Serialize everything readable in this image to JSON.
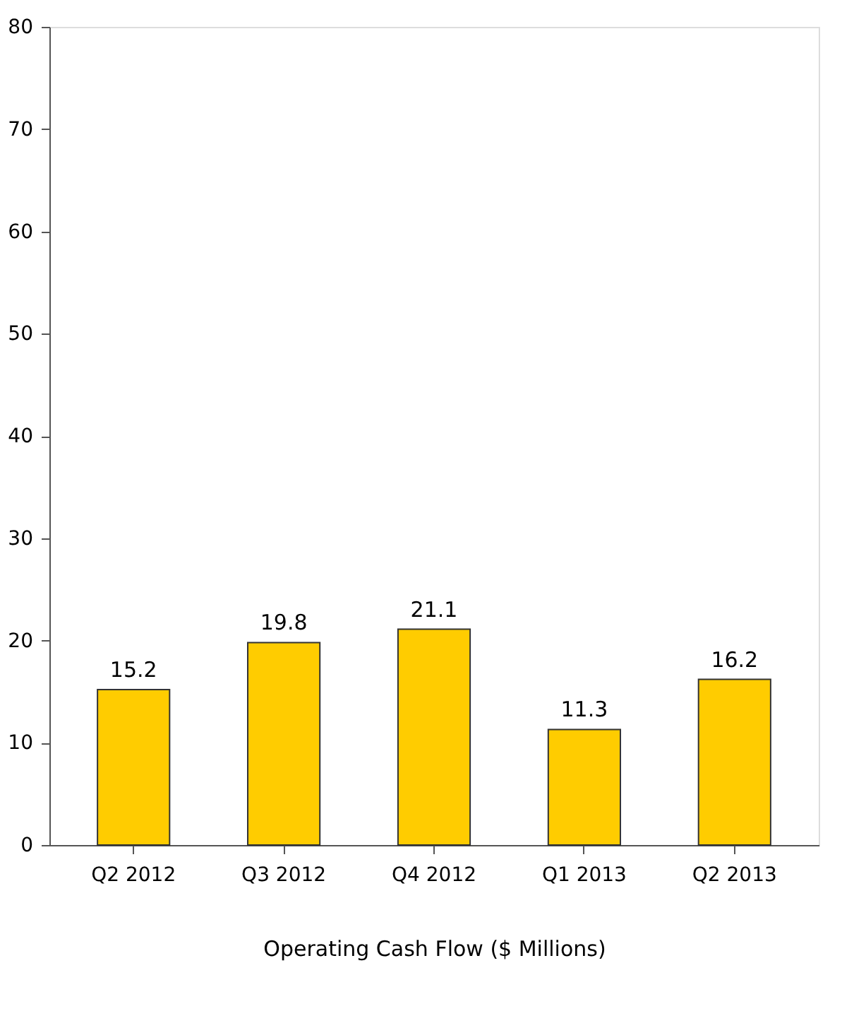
{
  "chart_data": {
    "type": "bar",
    "xlabel": "Operating Cash Flow ($ Millions)",
    "categories": [
      "Q2 2012",
      "Q3 2012",
      "Q4 2012",
      "Q1 2013",
      "Q2 2013"
    ],
    "values": [
      15.2,
      19.8,
      21.1,
      11.3,
      16.2
    ],
    "color": "#ffcc00",
    "ylim": [
      0,
      80
    ],
    "yticks": [
      0,
      10,
      20,
      30,
      40,
      50,
      60,
      70,
      80
    ],
    "data_labels": true,
    "grid": false
  }
}
